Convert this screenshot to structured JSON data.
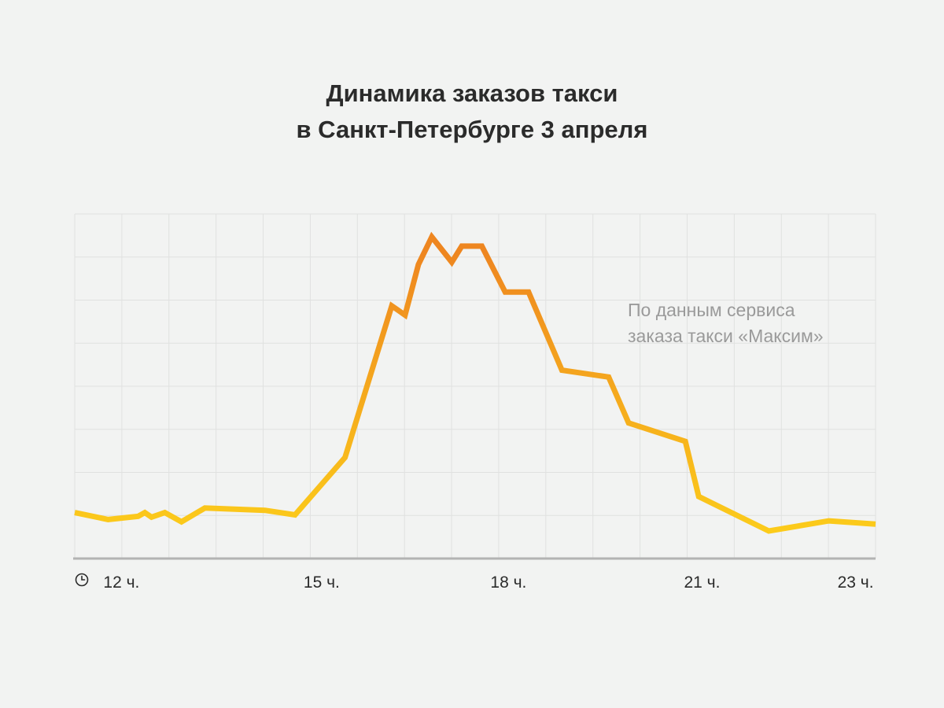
{
  "chart_data": {
    "type": "line",
    "title": "Динамика заказов такси",
    "subtitle": "в Санкт-Петербурге 3 апреля",
    "xlabel": "",
    "ylabel": "",
    "x_unit_icon": "clock-icon",
    "xlim": [
      11.0,
      23.0
    ],
    "ylim": [
      0,
      7.5
    ],
    "grid": true,
    "legend": "none",
    "x_ticks": [
      {
        "x": 11.7,
        "label": "12 ч."
      },
      {
        "x": 14.7,
        "label": "15 ч."
      },
      {
        "x": 17.5,
        "label": "18 ч."
      },
      {
        "x": 20.4,
        "label": "21 ч."
      },
      {
        "x": 22.7,
        "label": "23 ч."
      }
    ],
    "annotation": [
      "По данным сервиса",
      "заказа такси «Максим»"
    ],
    "colors": {
      "low": "#fdd21a",
      "high": "#ee8620",
      "grid": "#e0e1e0",
      "axis": "#b3b3b3"
    },
    "series": [
      {
        "values": [
          {
            "x": 11.0,
            "y": 1.0
          },
          {
            "x": 11.5,
            "y": 0.85
          },
          {
            "x": 11.95,
            "y": 0.92
          },
          {
            "x": 12.05,
            "y": 1.0
          },
          {
            "x": 12.15,
            "y": 0.9
          },
          {
            "x": 12.35,
            "y": 1.0
          },
          {
            "x": 12.6,
            "y": 0.8
          },
          {
            "x": 12.95,
            "y": 1.1
          },
          {
            "x": 13.85,
            "y": 1.05
          },
          {
            "x": 14.3,
            "y": 0.95
          },
          {
            "x": 15.05,
            "y": 2.2
          },
          {
            "x": 15.75,
            "y": 5.5
          },
          {
            "x": 15.95,
            "y": 5.3
          },
          {
            "x": 16.15,
            "y": 6.4
          },
          {
            "x": 16.35,
            "y": 7.0
          },
          {
            "x": 16.65,
            "y": 6.45
          },
          {
            "x": 16.8,
            "y": 6.8
          },
          {
            "x": 17.1,
            "y": 6.8
          },
          {
            "x": 17.45,
            "y": 5.8
          },
          {
            "x": 17.8,
            "y": 5.8
          },
          {
            "x": 18.3,
            "y": 4.1
          },
          {
            "x": 19.0,
            "y": 3.95
          },
          {
            "x": 19.3,
            "y": 2.95
          },
          {
            "x": 20.15,
            "y": 2.55
          },
          {
            "x": 20.35,
            "y": 1.35
          },
          {
            "x": 21.4,
            "y": 0.6
          },
          {
            "x": 22.3,
            "y": 0.82
          },
          {
            "x": 23.0,
            "y": 0.75
          }
        ]
      }
    ]
  }
}
